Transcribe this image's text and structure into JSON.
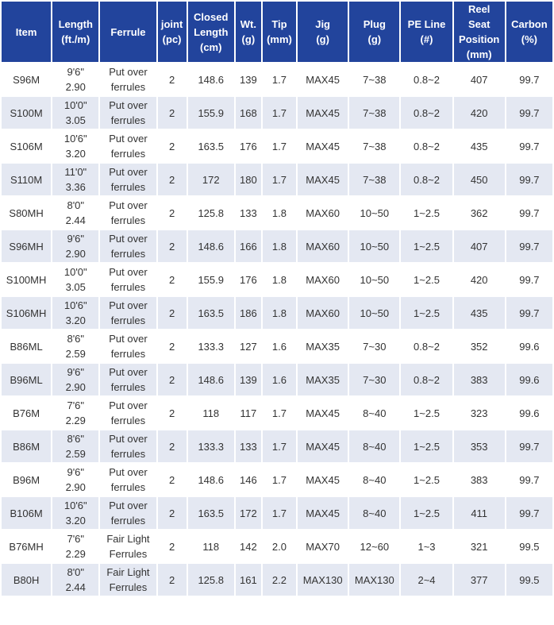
{
  "headers": [
    [
      "Item"
    ],
    [
      "Length",
      "(ft./m)"
    ],
    [
      "Ferrule"
    ],
    [
      "joint",
      "(pc)"
    ],
    [
      "Closed",
      "Length",
      "(cm)"
    ],
    [
      "Wt.",
      "(g)"
    ],
    [
      "Tip",
      "(mm)"
    ],
    [
      "Jig",
      "(g)"
    ],
    [
      "Plug",
      "(g)"
    ],
    [
      "PE Line",
      "(#)"
    ],
    [
      "Reel",
      "Seat",
      "Position",
      "(mm)"
    ],
    [
      "Carbon",
      "(%)"
    ]
  ],
  "rows": [
    {
      "item": "S96M",
      "len_ft": "9'6\"",
      "len_m": "2.90",
      "ferrule_1": "Put over",
      "ferrule_2": "ferrules",
      "joint": "2",
      "closed": "148.6",
      "wt": "139",
      "tip": "1.7",
      "jig": "MAX45",
      "plug": "7~38",
      "pe": "0.8~2",
      "reel": "407",
      "carbon": "99.7"
    },
    {
      "item": "S100M",
      "len_ft": "10'0\"",
      "len_m": "3.05",
      "ferrule_1": "Put over",
      "ferrule_2": "ferrules",
      "joint": "2",
      "closed": "155.9",
      "wt": "168",
      "tip": "1.7",
      "jig": "MAX45",
      "plug": "7~38",
      "pe": "0.8~2",
      "reel": "420",
      "carbon": "99.7"
    },
    {
      "item": "S106M",
      "len_ft": "10'6\"",
      "len_m": "3.20",
      "ferrule_1": "Put over",
      "ferrule_2": "ferrules",
      "joint": "2",
      "closed": "163.5",
      "wt": "176",
      "tip": "1.7",
      "jig": "MAX45",
      "plug": "7~38",
      "pe": "0.8~2",
      "reel": "435",
      "carbon": "99.7"
    },
    {
      "item": "S110M",
      "len_ft": "11'0\"",
      "len_m": "3.36",
      "ferrule_1": "Put over",
      "ferrule_2": "ferrules",
      "joint": "2",
      "closed": "172",
      "wt": "180",
      "tip": "1.7",
      "jig": "MAX45",
      "plug": "7~38",
      "pe": "0.8~2",
      "reel": "450",
      "carbon": "99.7"
    },
    {
      "item": "S80MH",
      "len_ft": "8'0\"",
      "len_m": "2.44",
      "ferrule_1": "Put over",
      "ferrule_2": "ferrules",
      "joint": "2",
      "closed": "125.8",
      "wt": "133",
      "tip": "1.8",
      "jig": "MAX60",
      "plug": "10~50",
      "pe": "1~2.5",
      "reel": "362",
      "carbon": "99.7"
    },
    {
      "item": "S96MH",
      "len_ft": "9'6\"",
      "len_m": "2.90",
      "ferrule_1": "Put over",
      "ferrule_2": "ferrules",
      "joint": "2",
      "closed": "148.6",
      "wt": "166",
      "tip": "1.8",
      "jig": "MAX60",
      "plug": "10~50",
      "pe": "1~2.5",
      "reel": "407",
      "carbon": "99.7"
    },
    {
      "item": "S100MH",
      "len_ft": "10'0\"",
      "len_m": "3.05",
      "ferrule_1": "Put over",
      "ferrule_2": "ferrules",
      "joint": "2",
      "closed": "155.9",
      "wt": "176",
      "tip": "1.8",
      "jig": "MAX60",
      "plug": "10~50",
      "pe": "1~2.5",
      "reel": "420",
      "carbon": "99.7"
    },
    {
      "item": "S106MH",
      "len_ft": "10'6\"",
      "len_m": "3.20",
      "ferrule_1": "Put over",
      "ferrule_2": "ferrules",
      "joint": "2",
      "closed": "163.5",
      "wt": "186",
      "tip": "1.8",
      "jig": "MAX60",
      "plug": "10~50",
      "pe": "1~2.5",
      "reel": "435",
      "carbon": "99.7"
    },
    {
      "item": "B86ML",
      "len_ft": "8'6\"",
      "len_m": "2.59",
      "ferrule_1": "Put over",
      "ferrule_2": "ferrules",
      "joint": "2",
      "closed": "133.3",
      "wt": "127",
      "tip": "1.6",
      "jig": "MAX35",
      "plug": "7~30",
      "pe": "0.8~2",
      "reel": "352",
      "carbon": "99.6"
    },
    {
      "item": "B96ML",
      "len_ft": "9'6\"",
      "len_m": "2.90",
      "ferrule_1": "Put over",
      "ferrule_2": "ferrules",
      "joint": "2",
      "closed": "148.6",
      "wt": "139",
      "tip": "1.6",
      "jig": "MAX35",
      "plug": "7~30",
      "pe": "0.8~2",
      "reel": "383",
      "carbon": "99.6"
    },
    {
      "item": "B76M",
      "len_ft": "7'6\"",
      "len_m": "2.29",
      "ferrule_1": "Put over",
      "ferrule_2": "ferrules",
      "joint": "2",
      "closed": "118",
      "wt": "117",
      "tip": "1.7",
      "jig": "MAX45",
      "plug": "8~40",
      "pe": "1~2.5",
      "reel": "323",
      "carbon": "99.6"
    },
    {
      "item": "B86M",
      "len_ft": "8'6\"",
      "len_m": "2.59",
      "ferrule_1": "Put over",
      "ferrule_2": "ferrules",
      "joint": "2",
      "closed": "133.3",
      "wt": "133",
      "tip": "1.7",
      "jig": "MAX45",
      "plug": "8~40",
      "pe": "1~2.5",
      "reel": "353",
      "carbon": "99.7"
    },
    {
      "item": "B96M",
      "len_ft": "9'6\"",
      "len_m": "2.90",
      "ferrule_1": "Put over",
      "ferrule_2": "ferrules",
      "joint": "2",
      "closed": "148.6",
      "wt": "146",
      "tip": "1.7",
      "jig": "MAX45",
      "plug": "8~40",
      "pe": "1~2.5",
      "reel": "383",
      "carbon": "99.7"
    },
    {
      "item": "B106M",
      "len_ft": "10'6\"",
      "len_m": "3.20",
      "ferrule_1": "Put over",
      "ferrule_2": "ferrules",
      "joint": "2",
      "closed": "163.5",
      "wt": "172",
      "tip": "1.7",
      "jig": "MAX45",
      "plug": "8~40",
      "pe": "1~2.5",
      "reel": "411",
      "carbon": "99.7"
    },
    {
      "item": "B76MH",
      "len_ft": "7'6\"",
      "len_m": "2.29",
      "ferrule_1": "Fair Light",
      "ferrule_2": "Ferrules",
      "joint": "2",
      "closed": "118",
      "wt": "142",
      "tip": "2.0",
      "jig": "MAX70",
      "plug": "12~60",
      "pe": "1~3",
      "reel": "321",
      "carbon": "99.5"
    },
    {
      "item": "B80H",
      "len_ft": "8'0\"",
      "len_m": "2.44",
      "ferrule_1": "Fair Light",
      "ferrule_2": "Ferrules",
      "joint": "2",
      "closed": "125.8",
      "wt": "161",
      "tip": "2.2",
      "jig": "MAX130",
      "plug": "MAX130",
      "pe": "2~4",
      "reel": "377",
      "carbon": "99.5"
    }
  ]
}
